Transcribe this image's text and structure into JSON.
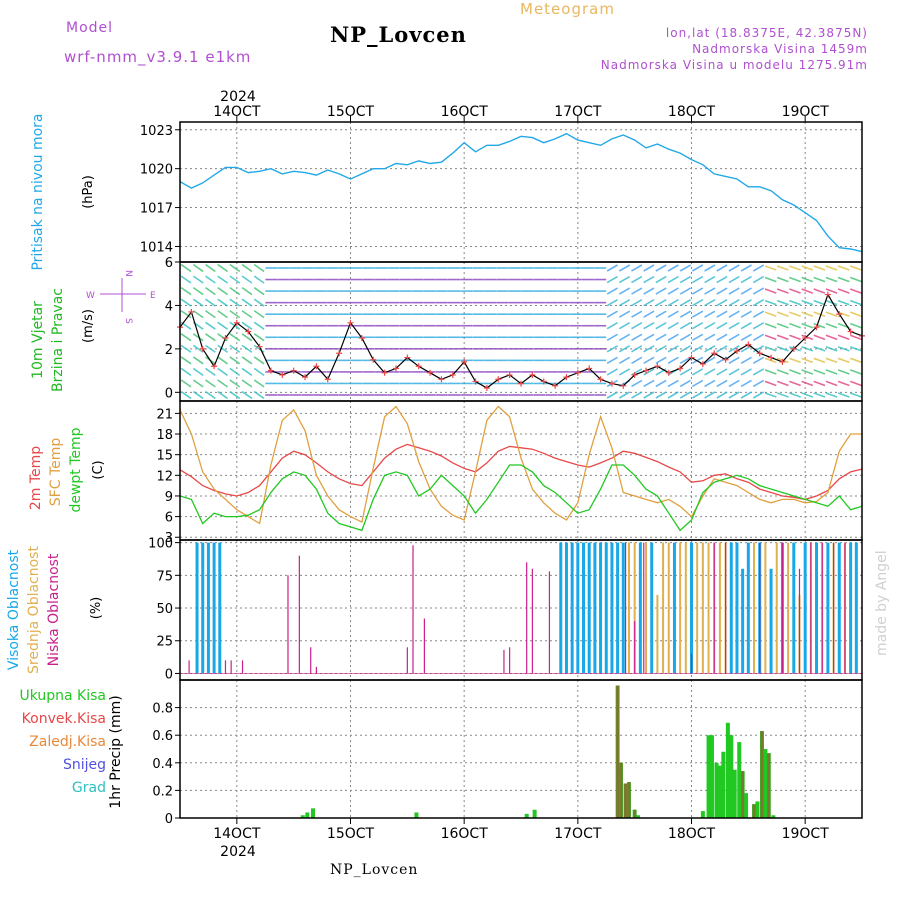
{
  "header": {
    "model_label": "Model",
    "model_value": "wrf-nmm_v3.9.1 e1km",
    "title": "NP_Lovcen",
    "meteogram_label": "Meteogram",
    "lonlat": "lon,lat (18.8375E, 42.3875N)",
    "altitude": "Nadmorska Visina 1459m",
    "model_altitude": "Nadmorska Visina u modelu 1275.91m",
    "bottom_title": "NP_Lovcen",
    "watermark": "made by Angel"
  },
  "time_axis": {
    "top_year": "2024",
    "bottom_year": "2024",
    "day_labels": [
      "14OCT",
      "15OCT",
      "16OCT",
      "17OCT",
      "18OCT",
      "19OCT"
    ],
    "day_values": [
      14,
      15,
      16,
      17,
      18,
      19
    ],
    "range": [
      13.5,
      19.5
    ],
    "step_hours": 3
  },
  "colors": {
    "pressure": "#22a8e8",
    "temp2m": "#e84848",
    "sfc_temp": "#e0a040",
    "dewpoint": "#22c822",
    "high_cloud": "#18a8e8",
    "mid_cloud": "#e0b050",
    "low_cloud": "#c8208c",
    "total_precip": "#22c822",
    "convective_precip": "#e84848",
    "grid": "#888888"
  },
  "chart_data": [
    {
      "type": "line",
      "title": "Pritisak na nivou mora",
      "ylabel": "Pritisak na nivou mora",
      "units": "(hPa)",
      "ylim": [
        1012.8,
        1023.6
      ],
      "yticks": [
        1014,
        1017,
        1020,
        1023
      ],
      "grid": true,
      "series": [
        {
          "name": "Pritisak na nivou mora",
          "x": [
            13.5,
            13.6,
            13.7,
            13.8,
            13.9,
            14.0,
            14.1,
            14.2,
            14.3,
            14.4,
            14.5,
            14.6,
            14.7,
            14.8,
            14.9,
            15.0,
            15.1,
            15.2,
            15.3,
            15.4,
            15.5,
            15.6,
            15.7,
            15.8,
            15.9,
            16.0,
            16.1,
            16.2,
            16.3,
            16.4,
            16.5,
            16.6,
            16.7,
            16.8,
            16.9,
            17.0,
            17.1,
            17.2,
            17.3,
            17.4,
            17.5,
            17.6,
            17.7,
            17.8,
            17.9,
            18.0,
            18.1,
            18.2,
            18.3,
            18.4,
            18.5,
            18.6,
            18.7,
            18.8,
            18.9,
            19.0,
            19.1,
            19.2,
            19.3,
            19.4,
            19.5
          ],
          "y": [
            1019.0,
            1018.5,
            1018.9,
            1019.5,
            1020.1,
            1020.1,
            1019.7,
            1019.8,
            1020.0,
            1019.6,
            1019.8,
            1019.7,
            1019.5,
            1019.9,
            1019.6,
            1019.2,
            1019.6,
            1020.0,
            1020.0,
            1020.4,
            1020.3,
            1020.6,
            1020.4,
            1020.5,
            1021.2,
            1022.0,
            1021.3,
            1021.8,
            1021.8,
            1022.1,
            1022.5,
            1022.4,
            1022.0,
            1022.3,
            1022.7,
            1022.2,
            1022.0,
            1021.8,
            1022.3,
            1022.6,
            1022.2,
            1021.6,
            1021.9,
            1021.5,
            1021.2,
            1020.7,
            1020.3,
            1019.6,
            1019.4,
            1019.2,
            1018.6,
            1018.6,
            1018.3,
            1017.6,
            1017.2,
            1016.6,
            1016.0,
            1014.8,
            1013.9,
            1013.8,
            1013.6
          ]
        }
      ]
    },
    {
      "type": "line",
      "title": "10m Vjetar Brzina i Pravac",
      "ylabel": "10m Vjetar Brzina i Pravac",
      "units": "(m/s)",
      "ylim": [
        -0.4,
        6
      ],
      "yticks": [
        0,
        2,
        4,
        6
      ],
      "grid": true,
      "compass": {
        "north": "N",
        "south": "S",
        "west": "W",
        "east": "E"
      },
      "series": [
        {
          "name": "10m Vjetar Brzina i Pravac",
          "x": [
            13.5,
            13.6,
            13.7,
            13.8,
            13.9,
            14.0,
            14.1,
            14.2,
            14.3,
            14.4,
            14.5,
            14.6,
            14.7,
            14.8,
            14.9,
            15.0,
            15.1,
            15.2,
            15.3,
            15.4,
            15.5,
            15.6,
            15.7,
            15.8,
            15.9,
            16.0,
            16.1,
            16.2,
            16.3,
            16.4,
            16.5,
            16.6,
            16.7,
            16.8,
            16.9,
            17.0,
            17.1,
            17.2,
            17.3,
            17.4,
            17.5,
            17.6,
            17.7,
            17.8,
            17.9,
            18.0,
            18.1,
            18.2,
            18.3,
            18.4,
            18.5,
            18.6,
            18.7,
            18.8,
            18.9,
            19.0,
            19.1,
            19.2,
            19.3,
            19.4,
            19.5
          ],
          "y": [
            3.0,
            3.7,
            2.0,
            1.2,
            2.5,
            3.2,
            2.8,
            2.1,
            1.0,
            0.8,
            1.0,
            0.7,
            1.2,
            0.6,
            1.8,
            3.2,
            2.5,
            1.5,
            0.9,
            1.1,
            1.6,
            1.2,
            0.9,
            0.6,
            0.8,
            1.4,
            0.5,
            0.2,
            0.6,
            0.8,
            0.4,
            0.8,
            0.5,
            0.3,
            0.7,
            0.9,
            1.1,
            0.6,
            0.4,
            0.3,
            0.8,
            1.0,
            1.2,
            0.9,
            1.1,
            1.6,
            1.3,
            1.8,
            1.5,
            1.9,
            2.2,
            1.8,
            1.6,
            1.4,
            2.0,
            2.5,
            3.0,
            4.5,
            3.6,
            2.8,
            2.6
          ]
        }
      ]
    },
    {
      "type": "line",
      "title": "2m Temp / SFC Temp / dewpt Temp",
      "units": "(C)",
      "ylim": [
        2.6,
        22.8
      ],
      "yticks": [
        3,
        6,
        9,
        12,
        15,
        18,
        21
      ],
      "grid": true,
      "series": [
        {
          "name": "2m Temp",
          "x": [
            13.5,
            13.6,
            13.7,
            13.8,
            13.9,
            14.0,
            14.1,
            14.2,
            14.3,
            14.4,
            14.5,
            14.6,
            14.7,
            14.8,
            14.9,
            15.0,
            15.1,
            15.2,
            15.3,
            15.4,
            15.5,
            15.6,
            15.7,
            15.8,
            15.9,
            16.0,
            16.1,
            16.2,
            16.3,
            16.4,
            16.5,
            16.6,
            16.7,
            16.8,
            16.9,
            17.0,
            17.1,
            17.2,
            17.3,
            17.4,
            17.5,
            17.6,
            17.7,
            17.8,
            17.9,
            18.0,
            18.1,
            18.2,
            18.3,
            18.4,
            18.5,
            18.6,
            18.7,
            18.8,
            18.9,
            19.0,
            19.1,
            19.2,
            19.3,
            19.4,
            19.5
          ],
          "y": [
            12.8,
            11.8,
            10.5,
            9.8,
            9.3,
            9.0,
            9.5,
            10.5,
            12.5,
            14.5,
            15.5,
            15.0,
            13.8,
            12.5,
            11.5,
            10.8,
            10.5,
            12.5,
            14.5,
            15.8,
            16.5,
            16.0,
            15.5,
            14.8,
            13.8,
            13.0,
            12.5,
            13.8,
            15.5,
            16.2,
            16.0,
            15.8,
            15.2,
            14.5,
            14.0,
            13.5,
            13.2,
            13.8,
            14.5,
            15.5,
            15.2,
            14.6,
            14.0,
            13.2,
            12.5,
            11.0,
            11.2,
            12.0,
            12.2,
            11.5,
            11.0,
            10.0,
            9.5,
            9.0,
            8.8,
            8.5,
            9.0,
            9.8,
            11.5,
            12.5,
            12.9
          ]
        },
        {
          "name": "SFC Temp",
          "x": [
            13.5,
            13.6,
            13.7,
            13.8,
            13.9,
            14.0,
            14.1,
            14.2,
            14.3,
            14.4,
            14.5,
            14.6,
            14.7,
            14.8,
            14.9,
            15.0,
            15.1,
            15.2,
            15.3,
            15.4,
            15.5,
            15.6,
            15.7,
            15.8,
            15.9,
            16.0,
            16.1,
            16.2,
            16.3,
            16.4,
            16.5,
            16.6,
            16.7,
            16.8,
            16.9,
            17.0,
            17.1,
            17.2,
            17.3,
            17.4,
            17.5,
            17.6,
            17.7,
            17.8,
            17.9,
            18.0,
            18.1,
            18.2,
            18.3,
            18.4,
            18.5,
            18.6,
            18.7,
            18.8,
            18.9,
            19.0,
            19.1,
            19.2,
            19.3,
            19.4,
            19.5
          ],
          "y": [
            21.5,
            18.0,
            12.5,
            10.0,
            8.5,
            7.0,
            6.0,
            5.0,
            13.5,
            20.0,
            21.5,
            18.5,
            12.0,
            9.0,
            7.0,
            6.0,
            5.2,
            13.0,
            20.5,
            22.0,
            19.5,
            14.0,
            10.0,
            7.5,
            6.2,
            5.5,
            12.5,
            20.0,
            22.0,
            20.5,
            14.5,
            10.0,
            8.0,
            6.5,
            5.5,
            8.0,
            15.0,
            20.5,
            16.0,
            9.5,
            9.0,
            8.5,
            8.0,
            8.5,
            7.5,
            6.0,
            9.0,
            11.5,
            11.0,
            10.5,
            9.5,
            8.5,
            8.0,
            8.5,
            8.5,
            8.0,
            8.2,
            9.5,
            15.5,
            18.0,
            18.0
          ]
        },
        {
          "name": "dewpt Temp",
          "x": [
            13.5,
            13.6,
            13.7,
            13.8,
            13.9,
            14.0,
            14.1,
            14.2,
            14.3,
            14.4,
            14.5,
            14.6,
            14.7,
            14.8,
            14.9,
            15.0,
            15.1,
            15.2,
            15.3,
            15.4,
            15.5,
            15.6,
            15.7,
            15.8,
            15.9,
            16.0,
            16.1,
            16.2,
            16.3,
            16.4,
            16.5,
            16.6,
            16.7,
            16.8,
            16.9,
            17.0,
            17.1,
            17.2,
            17.3,
            17.4,
            17.5,
            17.6,
            17.7,
            17.8,
            17.9,
            18.0,
            18.1,
            18.2,
            18.3,
            18.4,
            18.5,
            18.6,
            18.7,
            18.8,
            18.9,
            19.0,
            19.1,
            19.2,
            19.3,
            19.4,
            19.5
          ],
          "y": [
            9.0,
            8.5,
            5.0,
            6.5,
            6.0,
            6.0,
            6.2,
            7.0,
            9.5,
            11.5,
            12.5,
            12.0,
            10.0,
            6.5,
            5.0,
            4.5,
            4.0,
            8.5,
            12.0,
            12.5,
            12.0,
            9.0,
            10.0,
            12.0,
            10.5,
            9.0,
            6.5,
            8.5,
            11.0,
            13.5,
            13.5,
            12.5,
            10.5,
            9.5,
            8.0,
            6.5,
            7.0,
            10.0,
            13.5,
            13.5,
            12.0,
            10.0,
            9.0,
            6.5,
            4.0,
            5.5,
            9.5,
            11.0,
            11.5,
            12.0,
            11.5,
            10.5,
            10.0,
            9.5,
            9.0,
            8.5,
            8.0,
            7.5,
            9.0,
            7.0,
            7.5
          ]
        }
      ]
    },
    {
      "type": "bar",
      "title": "Visoka / Srednja / Niska Oblacnost",
      "units": "(%)",
      "ylim": [
        -5,
        102
      ],
      "yticks": [
        0,
        25,
        50,
        75,
        100
      ],
      "grid": true,
      "series": [
        {
          "name": "Visoka Oblacnost",
          "x": [
            13.65,
            13.7,
            13.75,
            13.8,
            13.85,
            16.85,
            16.9,
            16.95,
            17.0,
            17.05,
            17.1,
            17.15,
            17.2,
            17.25,
            17.3,
            17.35,
            17.4,
            17.55,
            17.65,
            17.85,
            18.0,
            18.35,
            18.4,
            18.45,
            18.5,
            18.6,
            18.7,
            18.8,
            18.9,
            19.0,
            19.1,
            19.2,
            19.3,
            19.4,
            19.45
          ],
          "y": [
            100,
            100,
            100,
            100,
            100,
            100,
            100,
            100,
            100,
            100,
            100,
            100,
            100,
            100,
            100,
            100,
            100,
            100,
            100,
            100,
            100,
            100,
            100,
            80,
            100,
            100,
            80,
            100,
            100,
            100,
            100,
            100,
            100,
            100,
            100
          ]
        },
        {
          "name": "Srednja Oblacnost",
          "x": [
            17.45,
            17.5,
            17.6,
            17.7,
            17.75,
            17.8,
            17.9,
            17.95,
            18.05,
            18.1,
            18.15,
            18.2,
            18.25,
            18.3,
            18.55,
            18.65,
            18.75,
            18.85,
            18.95,
            19.05,
            19.15,
            19.25,
            19.35
          ],
          "y": [
            100,
            100,
            100,
            60,
            100,
            100,
            100,
            100,
            100,
            100,
            100,
            100,
            100,
            100,
            100,
            100,
            100,
            100,
            60,
            100,
            100,
            100,
            100
          ]
        },
        {
          "name": "Niska Oblacnost",
          "x": [
            13.58,
            13.9,
            13.95,
            14.05,
            14.45,
            14.55,
            14.65,
            14.7,
            15.5,
            15.55,
            15.65,
            16.35,
            16.4,
            16.55,
            16.6,
            16.75,
            17.42,
            17.5,
            17.58,
            18.0,
            18.2,
            18.3,
            18.6,
            18.8,
            18.95,
            19.05,
            19.15,
            19.25,
            19.35
          ],
          "y": [
            10,
            10,
            10,
            10,
            75,
            90,
            20,
            5,
            20,
            98,
            42,
            18,
            20,
            85,
            80,
            78,
            100,
            40,
            100,
            15,
            100,
            100,
            100,
            100,
            80,
            100,
            100,
            100,
            100
          ]
        }
      ]
    },
    {
      "type": "bar",
      "title": "1hr Precip",
      "units": "(mm)",
      "ylim": [
        0,
        1.0
      ],
      "yticks": [
        0,
        0.2,
        0.4,
        0.6,
        0.8
      ],
      "grid": true,
      "legend": [
        "Ukupna Kisa",
        "Konvek.Kisa",
        "Zaledj.Kisa",
        "Snijeg",
        "Grad"
      ],
      "legend_colors": [
        "#22c822",
        "#e84848",
        "#e88838",
        "#5050e0",
        "#30c0c0"
      ],
      "series": [
        {
          "name": "Ukupna Kisa",
          "x": [
            14.58,
            14.62,
            14.67,
            15.58,
            16.55,
            16.62,
            17.35,
            17.38,
            17.42,
            17.45,
            17.5,
            17.53,
            18.1,
            18.15,
            18.18,
            18.22,
            18.25,
            18.28,
            18.32,
            18.35,
            18.38,
            18.42,
            18.45,
            18.48,
            18.55,
            18.58,
            18.62,
            18.65,
            18.68,
            18.72
          ],
          "y": [
            0.02,
            0.04,
            0.07,
            0.04,
            0.03,
            0.06,
            0.96,
            0.4,
            0.25,
            0.26,
            0.06,
            0.02,
            0.05,
            0.6,
            0.6,
            0.4,
            0.38,
            0.48,
            0.69,
            0.6,
            0.35,
            0.55,
            0.34,
            0.18,
            0.1,
            0.12,
            0.63,
            0.5,
            0.47,
            0.02
          ]
        },
        {
          "name": "Konvek.Kisa",
          "x": [
            17.35,
            17.38,
            17.42,
            17.45,
            17.5,
            18.45,
            18.55,
            18.62,
            18.68
          ],
          "y": [
            0.96,
            0.4,
            0.25,
            0.26,
            0.06,
            0.34,
            0.1,
            0.63,
            0.47
          ]
        }
      ]
    }
  ]
}
